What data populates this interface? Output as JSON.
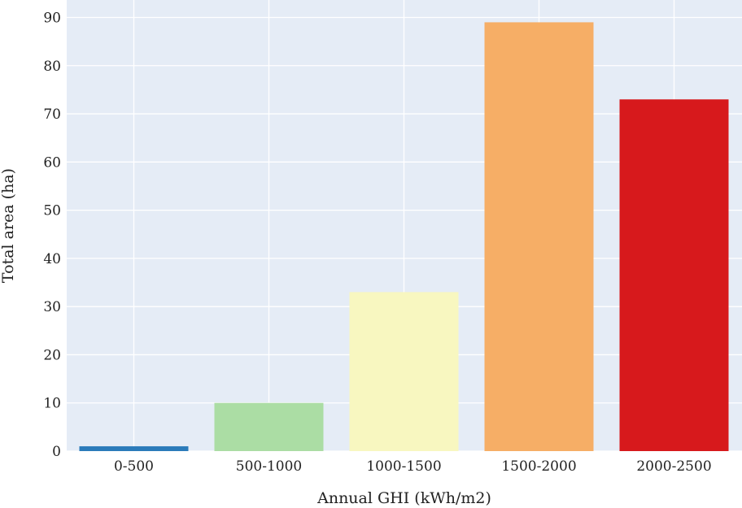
{
  "chart_data": {
    "type": "bar",
    "categories": [
      "0-500",
      "500-1000",
      "1000-1500",
      "1500-2000",
      "2000-2500"
    ],
    "values": [
      1,
      10,
      33,
      89,
      73
    ],
    "bar_colors": [
      "#2b7bba",
      "#abdda4",
      "#f8f7c0",
      "#f6ae66",
      "#d7191c"
    ],
    "xlabel": "Annual GHI (kWh/m2)",
    "ylabel": "Total area (ha)",
    "ylim": [
      0,
      92
    ],
    "yticks": [
      0,
      10,
      20,
      30,
      40,
      50,
      60,
      70,
      80,
      90
    ],
    "grid": true,
    "plot_background": "#e5ecf6",
    "grid_color": "#ffffff"
  }
}
